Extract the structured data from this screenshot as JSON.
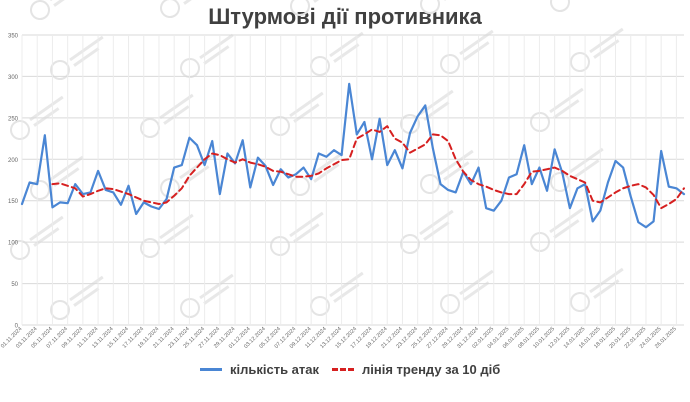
{
  "chart_data": {
    "type": "line",
    "title": "Штурмові дії противника",
    "ylim": [
      0,
      350
    ],
    "yticks": [
      0,
      50,
      100,
      150,
      200,
      250,
      300,
      350
    ],
    "grid": true,
    "legend_position": "bottom",
    "x": [
      "01.11.2024",
      "02.11.2024",
      "03.11.2024",
      "04.11.2024",
      "05.11.2024",
      "06.11.2024",
      "07.11.2024",
      "08.11.2024",
      "09.11.2024",
      "10.11.2024",
      "11.11.2024",
      "12.11.2024",
      "13.11.2024",
      "14.11.2024",
      "15.11.2024",
      "16.11.2024",
      "17.11.2024",
      "18.11.2024",
      "19.11.2024",
      "20.11.2024",
      "21.11.2024",
      "22.11.2024",
      "23.11.2024",
      "24.11.2024",
      "25.11.2024",
      "26.11.2024",
      "27.11.2024",
      "28.11.2024",
      "29.11.2024",
      "30.11.2024",
      "01.12.2024",
      "02.12.2024",
      "03.12.2024",
      "04.12.2024",
      "05.12.2024",
      "06.12.2024",
      "07.12.2024",
      "08.12.2024",
      "09.12.2024",
      "10.12.2024",
      "11.12.2024",
      "12.12.2024",
      "13.12.2024",
      "14.12.2024",
      "15.12.2024",
      "16.12.2024",
      "17.12.2024",
      "18.12.2024",
      "19.12.2024",
      "20.12.2024",
      "21.12.2024",
      "22.12.2024",
      "23.12.2024",
      "24.12.2024",
      "25.12.2024",
      "26.12.2024",
      "27.12.2024",
      "28.12.2024",
      "29.12.2024",
      "30.12.2024",
      "31.12.2024",
      "01.01.2025",
      "02.01.2025",
      "03.01.2025",
      "04.01.2025",
      "05.01.2025",
      "06.01.2025",
      "07.01.2025",
      "08.01.2025",
      "09.01.2025",
      "10.01.2025",
      "11.01.2025",
      "12.01.2025",
      "13.01.2025",
      "14.01.2025",
      "15.01.2025",
      "16.01.2025",
      "17.01.2025",
      "18.01.2025",
      "19.01.2025",
      "20.01.2025",
      "21.01.2025",
      "22.01.2025",
      "23.01.2025",
      "24.01.2025",
      "25.01.2025",
      "26.01.2025",
      "27.01.2025"
    ],
    "tick_labels": [
      "01.11.2024",
      "03.11.2024",
      "05.11.2024",
      "07.11.2024",
      "09.11.2024",
      "11.11.2024",
      "13.11.2024",
      "15.11.2024",
      "17.11.2024",
      "19.11.2024",
      "21.11.2024",
      "23.11.2024",
      "25.11.2024",
      "27.11.2024",
      "29.11.2024",
      "01.12.2024",
      "03.12.2024",
      "05.12.2024",
      "07.12.2024",
      "09.12.2024",
      "11.12.2024",
      "13.12.2024",
      "15.12.2024",
      "17.12.2024",
      "19.12.2024",
      "21.12.2024",
      "23.12.2024",
      "25.12.2024",
      "27.12.2024",
      "29.12.2024",
      "31.12.2024",
      "02.01.2025",
      "04.01.2025",
      "06.01.2025",
      "08.01.2025",
      "10.01.2025",
      "12.01.2025",
      "14.01.2025",
      "16.01.2025",
      "18.01.2025",
      "20.01.2025",
      "22.01.2025",
      "24.01.2025",
      "26.01.2025"
    ],
    "series": [
      {
        "name": "кількість атак",
        "color": "#4a86d4",
        "style": "solid",
        "values": [
          146,
          172,
          170,
          229,
          142,
          148,
          147,
          170,
          158,
          160,
          186,
          163,
          160,
          145,
          168,
          134,
          148,
          143,
          140,
          152,
          190,
          193,
          226,
          217,
          193,
          222,
          158,
          207,
          195,
          223,
          166,
          202,
          192,
          169,
          188,
          178,
          182,
          190,
          176,
          207,
          203,
          211,
          205,
          291,
          230,
          245,
          200,
          249,
          193,
          211,
          189,
          232,
          252,
          265,
          213,
          170,
          163,
          160,
          185,
          170,
          190,
          141,
          138,
          150,
          178,
          182,
          217,
          170,
          190,
          162,
          212,
          184,
          141,
          165,
          170,
          125,
          138,
          172,
          198,
          190,
          155,
          124,
          118,
          125,
          210,
          167,
          165,
          158
        ]
      },
      {
        "name": "лінія тренду за 10 діб",
        "color": "#d62020",
        "style": "dashed",
        "values": [
          null,
          null,
          null,
          null,
          170,
          171,
          168,
          165,
          155,
          158,
          162,
          165,
          164,
          161,
          158,
          154,
          150,
          148,
          146,
          148,
          156,
          165,
          180,
          190,
          200,
          207,
          205,
          200,
          196,
          200,
          196,
          194,
          191,
          186,
          185,
          182,
          179,
          179,
          180,
          183,
          189,
          194,
          199,
          200,
          225,
          230,
          236,
          233,
          240,
          225,
          220,
          208,
          213,
          218,
          230,
          229,
          222,
          200,
          185,
          175,
          170,
          167,
          163,
          160,
          158,
          158,
          170,
          185,
          186,
          188,
          190,
          186,
          180,
          176,
          172,
          150,
          148,
          154,
          160,
          165,
          168,
          170,
          166,
          157,
          141,
          146,
          152,
          165
        ]
      }
    ]
  }
}
